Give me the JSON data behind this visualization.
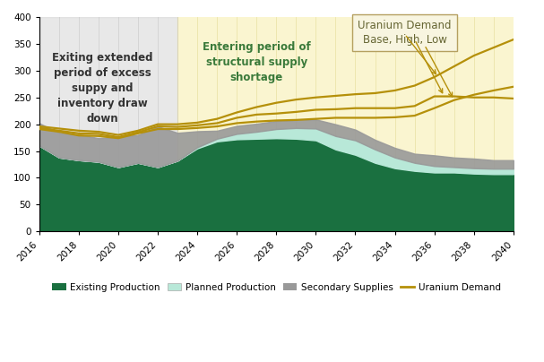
{
  "years": [
    2016,
    2017,
    2018,
    2019,
    2020,
    2021,
    2022,
    2023,
    2024,
    2025,
    2026,
    2027,
    2028,
    2029,
    2030,
    2031,
    2032,
    2033,
    2034,
    2035,
    2036,
    2037,
    2038,
    2039,
    2040
  ],
  "existing_production": [
    160,
    138,
    133,
    130,
    120,
    128,
    120,
    132,
    155,
    168,
    172,
    173,
    174,
    173,
    170,
    153,
    143,
    128,
    118,
    113,
    110,
    110,
    108,
    107,
    107
  ],
  "planned_production": [
    0,
    0,
    0,
    0,
    0,
    0,
    0,
    0,
    2,
    5,
    10,
    13,
    17,
    20,
    22,
    25,
    27,
    25,
    20,
    15,
    12,
    10,
    10,
    10,
    10
  ],
  "secondary_supplies": [
    42,
    46,
    48,
    44,
    57,
    52,
    76,
    52,
    30,
    15,
    15,
    15,
    15,
    15,
    17,
    22,
    20,
    18,
    18,
    17,
    20,
    18,
    18,
    16,
    16
  ],
  "demand_base": [
    193,
    188,
    183,
    182,
    176,
    185,
    196,
    195,
    198,
    202,
    212,
    218,
    220,
    223,
    227,
    228,
    230,
    230,
    230,
    234,
    252,
    252,
    250,
    250,
    248
  ],
  "demand_high": [
    196,
    192,
    188,
    186,
    180,
    188,
    200,
    200,
    203,
    210,
    222,
    232,
    240,
    246,
    250,
    253,
    256,
    258,
    263,
    272,
    288,
    308,
    328,
    343,
    358
  ],
  "demand_low": [
    191,
    186,
    179,
    178,
    174,
    183,
    191,
    191,
    193,
    196,
    202,
    205,
    207,
    208,
    210,
    212,
    212,
    212,
    213,
    216,
    230,
    245,
    255,
    263,
    270
  ],
  "gray_bg_start": 2016,
  "gray_bg_end": 2023,
  "yellow_bg_start": 2023,
  "yellow_bg_end": 2040,
  "colors": {
    "existing_production": "#1a7040",
    "planned_production": "#b8e8d8",
    "secondary_supplies": "#999999",
    "demand": "#b5900a",
    "gray_bg": "#cccccc",
    "yellow_bg": "#faf5d0",
    "stripe": "#e8e0a0",
    "annotation_box_face": "#f8f5e0",
    "annotation_box_edge": "#b5a060",
    "annotation_title_color": "#666633",
    "gray_text_color": "#333333",
    "yellow_text_color": "#3a7a3a"
  },
  "annotations": {
    "gray_text": "Exiting extended\nperiod of excess\nsuppy and\ninventory draw\ndown",
    "yellow_text": "Entering period of\nstructural supply\nshortage",
    "demand_box_title": "Uranium Demand",
    "demand_box_sub": "Base, High, Low"
  },
  "ylim": [
    0,
    400
  ],
  "yticks": [
    0,
    50,
    100,
    150,
    200,
    250,
    300,
    350,
    400
  ],
  "xticks": [
    2016,
    2018,
    2020,
    2022,
    2024,
    2026,
    2028,
    2030,
    2032,
    2034,
    2036,
    2038,
    2040
  ],
  "legend_labels": [
    "Existing Production",
    "Planned Production",
    "Secondary Supplies",
    "Uranium Demand"
  ]
}
